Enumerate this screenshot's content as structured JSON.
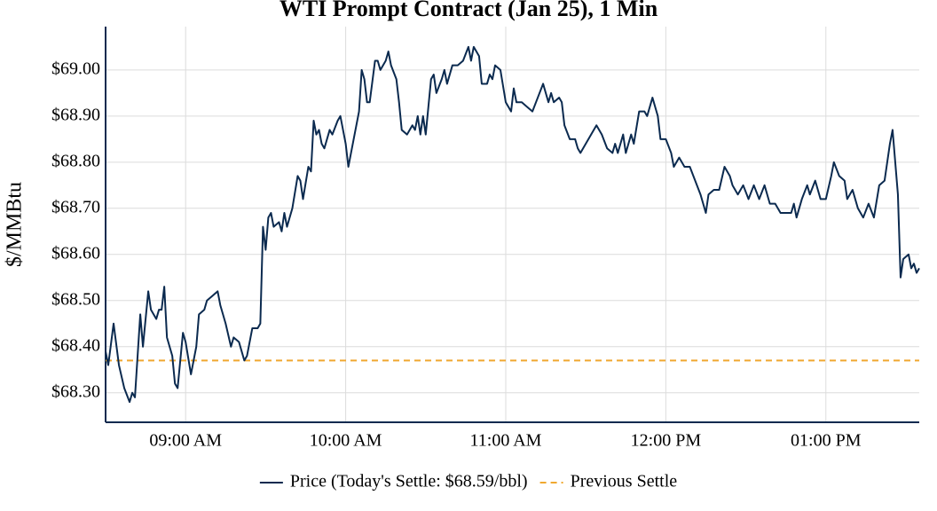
{
  "chart_data": {
    "type": "line",
    "title": "WTI Prompt Contract (Jan 25), 1 Min",
    "ylabel": "$/MMBtu",
    "x": [
      "08:30 AM",
      "08:31 AM",
      "08:33 AM",
      "08:35 AM",
      "08:37 AM",
      "08:39 AM",
      "08:40 AM",
      "08:41 AM",
      "08:43 AM",
      "08:44 AM",
      "08:46 AM",
      "08:47 AM",
      "08:49 AM",
      "08:50 AM",
      "08:51 AM",
      "08:52 AM",
      "08:53 AM",
      "08:55 AM",
      "08:56 AM",
      "08:57 AM",
      "08:59 AM",
      "09:00 AM",
      "09:02 AM",
      "09:04 AM",
      "09:05 AM",
      "09:07 AM",
      "09:08 AM",
      "09:10 AM",
      "09:12 AM",
      "09:13 AM",
      "09:15 AM",
      "09:17 AM",
      "09:18 AM",
      "09:20 AM",
      "09:22 AM",
      "09:23 AM",
      "09:25 AM",
      "09:27 AM",
      "09:28 AM",
      "09:29 AM",
      "09:30 AM",
      "09:31 AM",
      "09:32 AM",
      "09:33 AM",
      "09:35 AM",
      "09:36 AM",
      "09:37 AM",
      "09:38 AM",
      "09:40 AM",
      "09:42 AM",
      "09:43 AM",
      "09:44 AM",
      "09:46 AM",
      "09:47 AM",
      "09:48 AM",
      "09:49 AM",
      "09:50 AM",
      "09:51 AM",
      "09:52 AM",
      "09:54 AM",
      "09:55 AM",
      "09:57 AM",
      "09:58 AM",
      "10:00 AM",
      "10:01 AM",
      "10:03 AM",
      "10:05 AM",
      "10:06 AM",
      "10:07 AM",
      "10:08 AM",
      "10:09 AM",
      "10:11 AM",
      "10:12 AM",
      "10:13 AM",
      "10:15 AM",
      "10:16 AM",
      "10:17 AM",
      "10:19 AM",
      "10:20 AM",
      "10:21 AM",
      "10:23 AM",
      "10:25 AM",
      "10:26 AM",
      "10:27 AM",
      "10:28 AM",
      "10:29 AM",
      "10:30 AM",
      "10:31 AM",
      "10:32 AM",
      "10:33 AM",
      "10:34 AM",
      "10:36 AM",
      "10:37 AM",
      "10:38 AM",
      "10:40 AM",
      "10:42 AM",
      "10:44 AM",
      "10:46 AM",
      "10:47 AM",
      "10:48 AM",
      "10:50 AM",
      "10:51 AM",
      "10:53 AM",
      "10:54 AM",
      "10:55 AM",
      "10:56 AM",
      "10:58 AM",
      "11:00 AM",
      "11:02 AM",
      "11:03 AM",
      "11:04 AM",
      "11:06 AM",
      "11:08 AM",
      "11:10 AM",
      "11:12 AM",
      "11:14 AM",
      "11:16 AM",
      "11:17 AM",
      "11:18 AM",
      "11:20 AM",
      "11:21 AM",
      "11:22 AM",
      "11:24 AM",
      "11:26 AM",
      "11:27 AM",
      "11:28 AM",
      "11:30 AM",
      "11:32 AM",
      "11:34 AM",
      "11:36 AM",
      "11:38 AM",
      "11:40 AM",
      "11:41 AM",
      "11:42 AM",
      "11:44 AM",
      "11:45 AM",
      "11:47 AM",
      "11:48 AM",
      "11:50 AM",
      "11:52 AM",
      "11:53 AM",
      "11:55 AM",
      "11:57 AM",
      "11:58 AM",
      "12:00 PM",
      "12:02 PM",
      "12:03 PM",
      "12:05 PM",
      "12:07 PM",
      "12:09 PM",
      "12:11 PM",
      "12:13 PM",
      "12:15 PM",
      "12:16 PM",
      "12:18 PM",
      "12:20 PM",
      "12:22 PM",
      "12:24 PM",
      "12:25 PM",
      "12:27 PM",
      "12:29 PM",
      "12:31 PM",
      "12:33 PM",
      "12:35 PM",
      "12:37 PM",
      "12:39 PM",
      "12:41 PM",
      "12:43 PM",
      "12:45 PM",
      "12:47 PM",
      "12:48 PM",
      "12:49 PM",
      "12:51 PM",
      "12:53 PM",
      "12:54 PM",
      "12:56 PM",
      "12:58 PM",
      "01:00 PM",
      "01:02 PM",
      "01:03 PM",
      "01:05 PM",
      "01:07 PM",
      "01:08 PM",
      "01:10 PM",
      "01:12 PM",
      "01:14 PM",
      "01:16 PM",
      "01:18 PM",
      "01:20 PM",
      "01:22 PM",
      "01:24 PM",
      "01:25 PM",
      "01:27 PM",
      "01:28 PM",
      "01:29 PM",
      "01:31 PM",
      "01:32 PM",
      "01:33 PM",
      "01:34 PM",
      "01:35 PM"
    ],
    "series": [
      {
        "name": "Price (Today's Settle: $68.59/bbl)",
        "color": "#0b2a4f",
        "values": [
          68.39,
          68.36,
          68.45,
          68.36,
          68.31,
          68.28,
          68.3,
          68.29,
          68.47,
          68.4,
          68.52,
          68.48,
          68.46,
          68.48,
          68.48,
          68.53,
          68.42,
          68.38,
          68.32,
          68.31,
          68.43,
          68.41,
          68.34,
          68.4,
          68.47,
          68.48,
          68.5,
          68.51,
          68.52,
          68.49,
          68.45,
          68.4,
          68.42,
          68.41,
          68.37,
          68.38,
          68.44,
          68.44,
          68.45,
          68.66,
          68.61,
          68.68,
          68.69,
          68.66,
          68.67,
          68.65,
          68.69,
          68.66,
          68.7,
          68.77,
          68.76,
          68.72,
          68.79,
          68.78,
          68.89,
          68.86,
          68.87,
          68.84,
          68.83,
          68.87,
          68.86,
          68.89,
          68.9,
          68.84,
          68.79,
          68.85,
          68.91,
          69.0,
          68.98,
          68.93,
          68.93,
          69.02,
          69.02,
          69.0,
          69.02,
          69.04,
          69.01,
          68.98,
          68.93,
          68.87,
          68.86,
          68.88,
          68.87,
          68.9,
          68.86,
          68.9,
          68.86,
          68.92,
          68.98,
          68.99,
          68.95,
          68.98,
          69.0,
          68.97,
          69.01,
          69.01,
          69.02,
          69.05,
          69.02,
          69.05,
          69.03,
          68.97,
          68.97,
          68.99,
          68.98,
          69.01,
          69.0,
          68.93,
          68.91,
          68.96,
          68.93,
          68.93,
          68.92,
          68.91,
          68.94,
          68.97,
          68.93,
          68.95,
          68.93,
          68.94,
          68.93,
          68.88,
          68.85,
          68.85,
          68.83,
          68.82,
          68.84,
          68.86,
          68.88,
          68.86,
          68.83,
          68.82,
          68.84,
          68.82,
          68.86,
          68.82,
          68.86,
          68.84,
          68.91,
          68.91,
          68.9,
          68.94,
          68.9,
          68.85,
          68.85,
          68.82,
          68.79,
          68.81,
          68.79,
          68.79,
          68.76,
          68.73,
          68.69,
          68.73,
          68.74,
          68.74,
          68.79,
          68.77,
          68.75,
          68.73,
          68.75,
          68.72,
          68.75,
          68.72,
          68.75,
          68.71,
          68.71,
          68.69,
          68.69,
          68.69,
          68.71,
          68.68,
          68.72,
          68.75,
          68.73,
          68.76,
          68.72,
          68.72,
          68.77,
          68.8,
          68.77,
          68.76,
          68.72,
          68.74,
          68.7,
          68.68,
          68.71,
          68.68,
          68.75,
          68.76,
          68.84,
          68.87,
          68.73,
          68.55,
          68.59,
          68.6,
          68.57,
          68.58,
          68.56,
          68.57
        ]
      }
    ],
    "reference_lines": [
      {
        "name": "Previous Settle",
        "value": 68.37,
        "color": "#f0a830",
        "dashed": true
      }
    ],
    "xlim": [
      "08:30 AM",
      "01:35 PM"
    ],
    "xticks": [
      "09:00 AM",
      "10:00 AM",
      "11:00 AM",
      "12:00 PM",
      "01:00 PM"
    ],
    "ylim": [
      68.236,
      69.094
    ],
    "yticks": [
      {
        "value": 68.3,
        "label": "$68.30"
      },
      {
        "value": 68.4,
        "label": "$68.40"
      },
      {
        "value": 68.5,
        "label": "$68.50"
      },
      {
        "value": 68.6,
        "label": "$68.60"
      },
      {
        "value": 68.7,
        "label": "$68.70"
      },
      {
        "value": 68.8,
        "label": "$68.80"
      },
      {
        "value": 68.9,
        "label": "$68.90"
      },
      {
        "value": 69.0,
        "label": "$69.00"
      }
    ],
    "grid": true,
    "legend": "bottom"
  }
}
